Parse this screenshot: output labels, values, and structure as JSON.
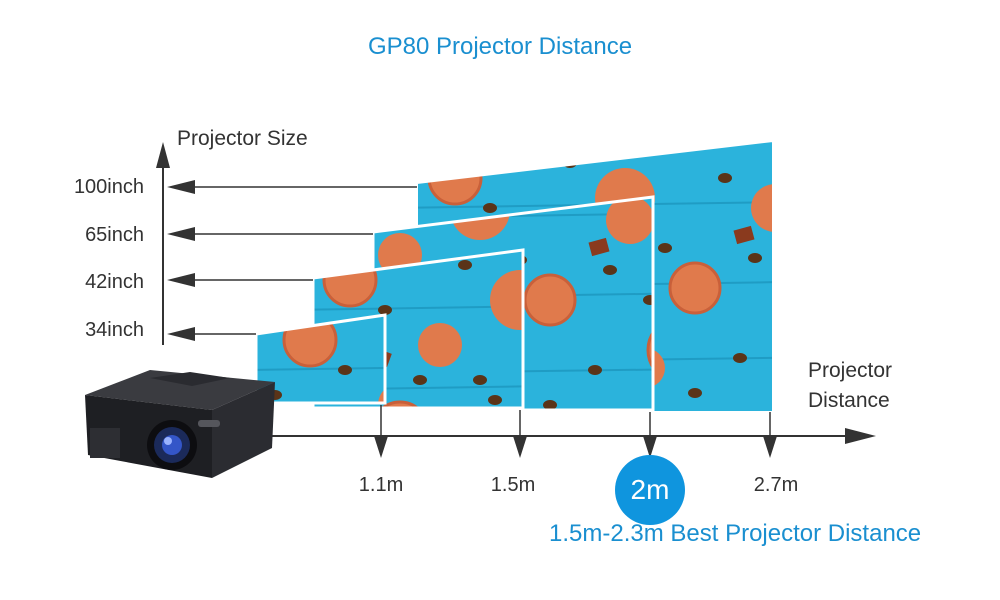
{
  "title": "GP80 Projector Distance",
  "y_axis_label": "Projector Size",
  "x_axis_label_line1": "Projector",
  "x_axis_label_line2": "Distance",
  "sizes": [
    "100inch",
    "65inch",
    "42inch",
    "34inch"
  ],
  "distances": [
    "1.1m",
    "1.5m",
    "2.7m"
  ],
  "best_distance": "2m",
  "best_range": "1.5m-2.3m Best Projector Distance",
  "colors": {
    "accent": "#1a8fd0",
    "screen": "#2bb3dc",
    "macaron": "#e07a4c",
    "bean": "#5a3418",
    "projector": "#1e1f23"
  }
}
